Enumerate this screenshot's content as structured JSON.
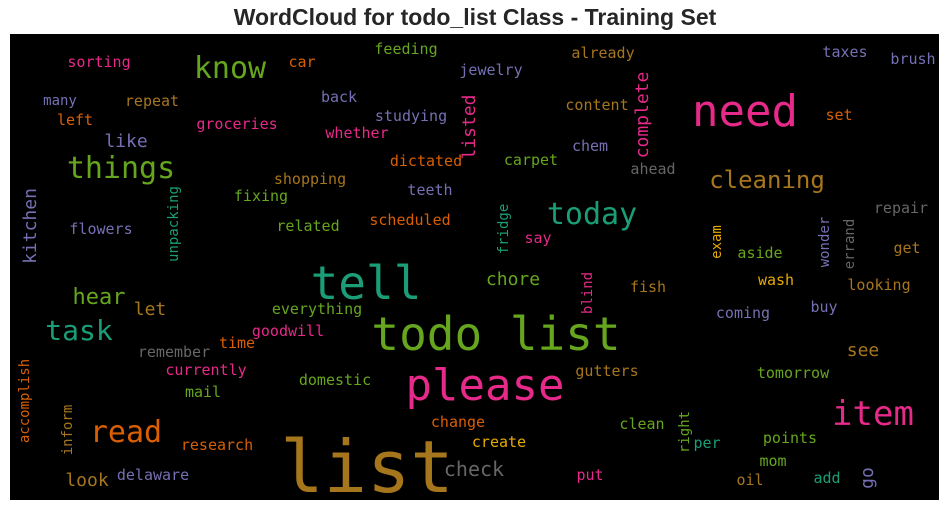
{
  "title": "WordCloud for todo_list Class - Training Set",
  "background_color": "#000000",
  "palette": {
    "pink": "#e7298a",
    "green": "#66a61e",
    "teal": "#1b9e77",
    "gold": "#a6761d",
    "orange": "#d95f02",
    "purple": "#7570b3",
    "yellow": "#e6ab02",
    "gray": "#666666"
  },
  "words": [
    {
      "text": "list",
      "color": "gold"
    },
    {
      "text": "todo list",
      "color": "green"
    },
    {
      "text": "please",
      "color": "pink"
    },
    {
      "text": "tell",
      "color": "teal"
    },
    {
      "text": "need",
      "color": "pink"
    },
    {
      "text": "item",
      "color": "pink"
    },
    {
      "text": "things",
      "color": "green"
    },
    {
      "text": "task",
      "color": "teal"
    },
    {
      "text": "know",
      "color": "green"
    },
    {
      "text": "today",
      "color": "teal"
    },
    {
      "text": "read",
      "color": "orange"
    },
    {
      "text": "cleaning",
      "color": "gold"
    },
    {
      "text": "hear",
      "color": "green"
    },
    {
      "text": "check",
      "color": "gray"
    },
    {
      "text": "chore",
      "color": "green"
    },
    {
      "text": "kitchen",
      "color": "purple"
    },
    {
      "text": "complete",
      "color": "pink"
    },
    {
      "text": "listed",
      "color": "pink"
    },
    {
      "text": "like",
      "color": "purple"
    },
    {
      "text": "let",
      "color": "gold"
    },
    {
      "text": "see",
      "color": "gold"
    },
    {
      "text": "look",
      "color": "gold"
    },
    {
      "text": "go",
      "color": "purple"
    },
    {
      "text": "sorting",
      "color": "pink"
    },
    {
      "text": "car",
      "color": "orange"
    },
    {
      "text": "feeding",
      "color": "green"
    },
    {
      "text": "jewelry",
      "color": "purple"
    },
    {
      "text": "already",
      "color": "gold"
    },
    {
      "text": "taxes",
      "color": "purple"
    },
    {
      "text": "brush",
      "color": "purple"
    },
    {
      "text": "many",
      "color": "purple"
    },
    {
      "text": "repeat",
      "color": "gold"
    },
    {
      "text": "back",
      "color": "purple"
    },
    {
      "text": "content",
      "color": "gold"
    },
    {
      "text": "left",
      "color": "orange"
    },
    {
      "text": "groceries",
      "color": "pink"
    },
    {
      "text": "studying",
      "color": "purple"
    },
    {
      "text": "whether",
      "color": "pink"
    },
    {
      "text": "set",
      "color": "orange"
    },
    {
      "text": "chem",
      "color": "purple"
    },
    {
      "text": "dictated",
      "color": "orange"
    },
    {
      "text": "carpet",
      "color": "green"
    },
    {
      "text": "ahead",
      "color": "gray"
    },
    {
      "text": "shopping",
      "color": "gold"
    },
    {
      "text": "teeth",
      "color": "purple"
    },
    {
      "text": "fixing",
      "color": "green"
    },
    {
      "text": "unpacking",
      "color": "teal"
    },
    {
      "text": "flowers",
      "color": "purple"
    },
    {
      "text": "related",
      "color": "green"
    },
    {
      "text": "scheduled",
      "color": "orange"
    },
    {
      "text": "fridge",
      "color": "teal"
    },
    {
      "text": "say",
      "color": "pink"
    },
    {
      "text": "exam",
      "color": "yellow"
    },
    {
      "text": "aside",
      "color": "green"
    },
    {
      "text": "wonder",
      "color": "purple"
    },
    {
      "text": "errand",
      "color": "gray"
    },
    {
      "text": "repair",
      "color": "gray"
    },
    {
      "text": "get",
      "color": "gold"
    },
    {
      "text": "blind",
      "color": "pink"
    },
    {
      "text": "wash",
      "color": "yellow"
    },
    {
      "text": "fish",
      "color": "gold"
    },
    {
      "text": "looking",
      "color": "gold"
    },
    {
      "text": "everything",
      "color": "green"
    },
    {
      "text": "coming",
      "color": "purple"
    },
    {
      "text": "buy",
      "color": "purple"
    },
    {
      "text": "goodwill",
      "color": "pink"
    },
    {
      "text": "time",
      "color": "orange"
    },
    {
      "text": "remember",
      "color": "gray"
    },
    {
      "text": "accomplish",
      "color": "orange"
    },
    {
      "text": "currently",
      "color": "pink"
    },
    {
      "text": "domestic",
      "color": "green"
    },
    {
      "text": "gutters",
      "color": "gold"
    },
    {
      "text": "tomorrow",
      "color": "green"
    },
    {
      "text": "mail",
      "color": "green"
    },
    {
      "text": "inform",
      "color": "gold"
    },
    {
      "text": "research",
      "color": "orange"
    },
    {
      "text": "change",
      "color": "orange"
    },
    {
      "text": "clean",
      "color": "green"
    },
    {
      "text": "right",
      "color": "green"
    },
    {
      "text": "per",
      "color": "teal"
    },
    {
      "text": "points",
      "color": "green"
    },
    {
      "text": "create",
      "color": "yellow"
    },
    {
      "text": "mom",
      "color": "green"
    },
    {
      "text": "delaware",
      "color": "purple"
    },
    {
      "text": "put",
      "color": "pink"
    },
    {
      "text": "oil",
      "color": "gold"
    },
    {
      "text": "add",
      "color": "teal"
    }
  ]
}
